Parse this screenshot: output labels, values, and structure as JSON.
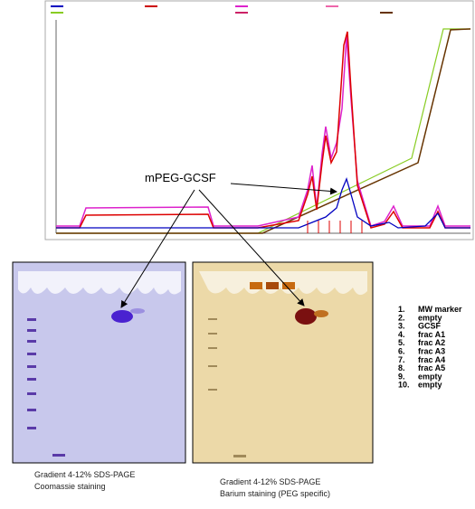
{
  "annotation": "mPEG-GCSF",
  "gels": [
    {
      "caption": [
        "Gradient 4-12% SDS-PAGE",
        "Coomassie staining"
      ]
    },
    {
      "caption": [
        "Gradient 4-12% SDS-PAGE",
        "Barium staining (PEG specific)"
      ]
    }
  ],
  "lanes": [
    {
      "number": "1.",
      "label": "MW marker"
    },
    {
      "number": "2.",
      "label": "empty"
    },
    {
      "number": "3.",
      "label": "GCSF"
    },
    {
      "number": "4.",
      "label": "frac A1"
    },
    {
      "number": "5.",
      "label": "frac A2"
    },
    {
      "number": "6.",
      "label": "frac A3"
    },
    {
      "number": "7.",
      "label": "frac A4"
    },
    {
      "number": "8.",
      "label": "frac A5"
    },
    {
      "number": "9.",
      "label": "empty"
    },
    {
      "number": "10.",
      "label": "empty"
    }
  ]
}
